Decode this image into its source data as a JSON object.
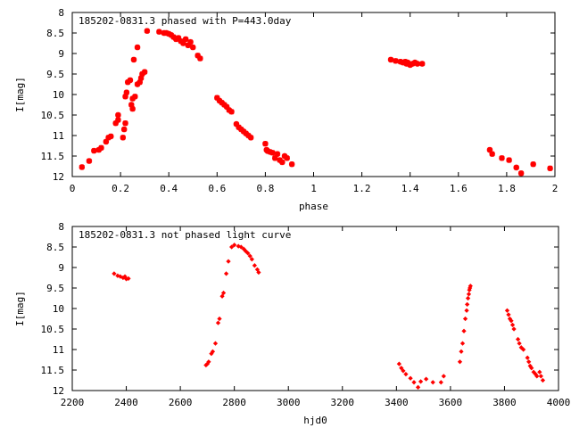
{
  "chart_data": [
    {
      "type": "scatter",
      "title": "185202-0831.3 phased with P=443.0day",
      "xlabel": "phase",
      "ylabel": "I[mag]",
      "xlim": [
        0,
        2
      ],
      "ylim": [
        12,
        8
      ],
      "y_inverted": true,
      "grid": false,
      "x_ticks": [
        "0",
        "0.2",
        "0.4",
        "0.6",
        "0.8",
        "1",
        "1.2",
        "1.4",
        "1.6",
        "1.8",
        "2"
      ],
      "y_ticks": [
        "8",
        "8.5",
        "9",
        "9.5",
        "10",
        "10.5",
        "11",
        "11.5",
        "12"
      ],
      "marker": "star",
      "color": "#ff0000",
      "series": [
        {
          "points": [
            [
              0.04,
              11.77
            ],
            [
              0.07,
              11.62
            ],
            [
              0.09,
              11.37
            ],
            [
              0.11,
              11.35
            ],
            [
              0.12,
              11.3
            ],
            [
              0.14,
              11.15
            ],
            [
              0.15,
              11.05
            ],
            [
              0.16,
              11.02
            ],
            [
              0.18,
              10.7
            ],
            [
              0.19,
              10.62
            ],
            [
              0.19,
              10.5
            ],
            [
              0.21,
              11.05
            ],
            [
              0.215,
              10.85
            ],
            [
              0.22,
              10.7
            ],
            [
              0.22,
              10.05
            ],
            [
              0.225,
              9.95
            ],
            [
              0.23,
              9.7
            ],
            [
              0.24,
              9.65
            ],
            [
              0.245,
              10.25
            ],
            [
              0.25,
              10.1
            ],
            [
              0.25,
              10.35
            ],
            [
              0.26,
              10.05
            ],
            [
              0.255,
              9.15
            ],
            [
              0.27,
              9.75
            ],
            [
              0.27,
              8.85
            ],
            [
              0.28,
              9.7
            ],
            [
              0.285,
              9.6
            ],
            [
              0.29,
              9.5
            ],
            [
              0.3,
              9.45
            ],
            [
              0.31,
              8.45
            ],
            [
              0.36,
              8.47
            ],
            [
              0.38,
              8.5
            ],
            [
              0.39,
              8.5
            ],
            [
              0.4,
              8.52
            ],
            [
              0.41,
              8.55
            ],
            [
              0.42,
              8.6
            ],
            [
              0.43,
              8.65
            ],
            [
              0.44,
              8.62
            ],
            [
              0.45,
              8.7
            ],
            [
              0.46,
              8.75
            ],
            [
              0.47,
              8.65
            ],
            [
              0.48,
              8.8
            ],
            [
              0.49,
              8.72
            ],
            [
              0.5,
              8.85
            ],
            [
              0.52,
              9.05
            ],
            [
              0.53,
              9.12
            ],
            [
              0.6,
              10.08
            ],
            [
              0.61,
              10.15
            ],
            [
              0.62,
              10.2
            ],
            [
              0.63,
              10.25
            ],
            [
              0.64,
              10.3
            ],
            [
              0.65,
              10.38
            ],
            [
              0.66,
              10.42
            ],
            [
              0.68,
              10.72
            ],
            [
              0.69,
              10.8
            ],
            [
              0.7,
              10.85
            ],
            [
              0.71,
              10.9
            ],
            [
              0.72,
              10.95
            ],
            [
              0.73,
              11.0
            ],
            [
              0.74,
              11.05
            ],
            [
              0.8,
              11.2
            ],
            [
              0.805,
              11.35
            ],
            [
              0.81,
              11.38
            ],
            [
              0.82,
              11.4
            ],
            [
              0.83,
              11.42
            ],
            [
              0.84,
              11.55
            ],
            [
              0.85,
              11.45
            ],
            [
              0.86,
              11.6
            ],
            [
              0.87,
              11.65
            ],
            [
              0.88,
              11.5
            ],
            [
              0.89,
              11.55
            ],
            [
              0.91,
              11.7
            ],
            [
              1.32,
              9.15
            ],
            [
              1.34,
              9.18
            ],
            [
              1.36,
              9.2
            ],
            [
              1.37,
              9.22
            ],
            [
              1.38,
              9.2
            ],
            [
              1.385,
              9.25
            ],
            [
              1.39,
              9.22
            ],
            [
              1.4,
              9.28
            ],
            [
              1.41,
              9.25
            ],
            [
              1.42,
              9.22
            ],
            [
              1.43,
              9.25
            ],
            [
              1.45,
              9.25
            ],
            [
              1.73,
              11.35
            ],
            [
              1.74,
              11.45
            ],
            [
              1.78,
              11.55
            ],
            [
              1.81,
              11.6
            ],
            [
              1.84,
              11.78
            ],
            [
              1.86,
              11.92
            ],
            [
              1.91,
              11.7
            ],
            [
              1.98,
              11.8
            ]
          ]
        }
      ]
    },
    {
      "type": "scatter",
      "title": "185202-0831.3 not phased light curve",
      "xlabel": "hjd0",
      "ylabel": "I[mag]",
      "xlim": [
        2200,
        4000
      ],
      "ylim": [
        12,
        8
      ],
      "y_inverted": true,
      "grid": false,
      "x_ticks": [
        "2200",
        "2400",
        "2600",
        "2800",
        "3000",
        "3200",
        "3400",
        "3600",
        "3800",
        "4000"
      ],
      "y_ticks": [
        "8",
        "8.5",
        "9",
        "9.5",
        "10",
        "10.5",
        "11",
        "11.5",
        "12"
      ],
      "marker": "diamond",
      "color": "#ff0000",
      "series": [
        {
          "points": [
            [
              2355,
              9.15
            ],
            [
              2368,
              9.2
            ],
            [
              2378,
              9.22
            ],
            [
              2388,
              9.25
            ],
            [
              2395,
              9.22
            ],
            [
              2400,
              9.28
            ],
            [
              2408,
              9.27
            ],
            [
              2695,
              11.38
            ],
            [
              2700,
              11.35
            ],
            [
              2705,
              11.3
            ],
            [
              2715,
              11.1
            ],
            [
              2720,
              11.05
            ],
            [
              2730,
              10.85
            ],
            [
              2740,
              10.35
            ],
            [
              2745,
              10.25
            ],
            [
              2755,
              9.7
            ],
            [
              2760,
              9.62
            ],
            [
              2770,
              9.15
            ],
            [
              2778,
              8.85
            ],
            [
              2790,
              8.5
            ],
            [
              2800,
              8.45
            ],
            [
              2815,
              8.48
            ],
            [
              2825,
              8.5
            ],
            [
              2835,
              8.55
            ],
            [
              2842,
              8.6
            ],
            [
              2850,
              8.65
            ],
            [
              2858,
              8.72
            ],
            [
              2865,
              8.8
            ],
            [
              2875,
              8.95
            ],
            [
              2885,
              9.05
            ],
            [
              2890,
              9.12
            ],
            [
              3410,
              11.35
            ],
            [
              3418,
              11.45
            ],
            [
              3425,
              11.52
            ],
            [
              3435,
              11.6
            ],
            [
              3452,
              11.7
            ],
            [
              3465,
              11.8
            ],
            [
              3480,
              11.92
            ],
            [
              3490,
              11.78
            ],
            [
              3510,
              11.72
            ],
            [
              3535,
              11.8
            ],
            [
              3565,
              11.8
            ],
            [
              3575,
              11.65
            ],
            [
              3635,
              11.3
            ],
            [
              3640,
              11.05
            ],
            [
              3645,
              10.85
            ],
            [
              3650,
              10.55
            ],
            [
              3655,
              10.25
            ],
            [
              3660,
              10.05
            ],
            [
              3662,
              9.9
            ],
            [
              3665,
              9.75
            ],
            [
              3668,
              9.65
            ],
            [
              3670,
              9.55
            ],
            [
              3672,
              9.5
            ],
            [
              3674,
              9.45
            ],
            [
              3810,
              10.05
            ],
            [
              3815,
              10.15
            ],
            [
              3820,
              10.25
            ],
            [
              3825,
              10.3
            ],
            [
              3830,
              10.4
            ],
            [
              3835,
              10.5
            ],
            [
              3850,
              10.75
            ],
            [
              3855,
              10.85
            ],
            [
              3862,
              10.95
            ],
            [
              3870,
              11.0
            ],
            [
              3885,
              11.2
            ],
            [
              3890,
              11.3
            ],
            [
              3895,
              11.4
            ],
            [
              3900,
              11.45
            ],
            [
              3908,
              11.55
            ],
            [
              3915,
              11.6
            ],
            [
              3920,
              11.65
            ],
            [
              3930,
              11.55
            ],
            [
              3935,
              11.65
            ],
            [
              3942,
              11.75
            ]
          ]
        }
      ]
    }
  ]
}
